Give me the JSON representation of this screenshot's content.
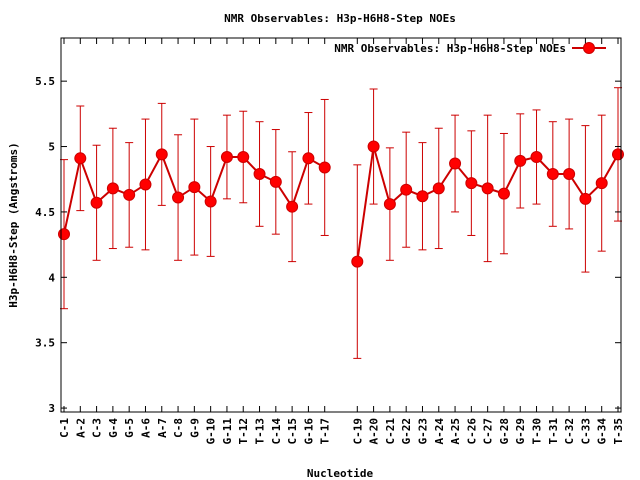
{
  "chart_data": {
    "type": "line",
    "title": "NMR Observables: H3p-H6H8-Step NOEs",
    "xlabel": "Nucleotide",
    "ylabel": "H3p-H6H8-Step (Angstroms)",
    "ylim": [
      2.97,
      5.83
    ],
    "yticks": [
      3,
      3.5,
      4,
      4.5,
      5,
      5.5
    ],
    "ytick_labels": [
      "3",
      "3.5",
      "4",
      "4.5",
      "5",
      "5.5"
    ],
    "grid": false,
    "legend_position": "top-right",
    "colors": {
      "series": "#ff0000",
      "errorbar": "#cc0000",
      "axis": "#000000"
    },
    "x": [
      "C-1",
      "A-2",
      "C-3",
      "G-4",
      "G-5",
      "A-6",
      "A-7",
      "C-8",
      "G-9",
      "G-10",
      "G-11",
      "T-12",
      "T-13",
      "C-14",
      "C-15",
      "G-16",
      "T-17",
      "",
      "C-19",
      "A-20",
      "C-21",
      "G-22",
      "G-23",
      "A-24",
      "A-25",
      "C-26",
      "C-27",
      "G-28",
      "G-29",
      "T-30",
      "T-31",
      "C-32",
      "C-33",
      "G-34",
      "T-35"
    ],
    "series": [
      {
        "name": "NMR Observables: H3p-H6H8-Step NOEs",
        "values": [
          4.33,
          4.91,
          4.57,
          4.68,
          4.63,
          4.71,
          4.94,
          4.61,
          4.69,
          4.58,
          4.92,
          4.92,
          4.79,
          4.73,
          4.54,
          4.91,
          4.84,
          null,
          4.12,
          5.0,
          4.56,
          4.67,
          4.62,
          4.68,
          4.87,
          4.72,
          4.68,
          4.64,
          4.89,
          4.92,
          4.79,
          4.79,
          4.6,
          4.72,
          4.94
        ],
        "errors": [
          0.57,
          0.4,
          0.44,
          0.46,
          0.4,
          0.5,
          0.39,
          0.48,
          0.52,
          0.42,
          0.32,
          0.35,
          0.4,
          0.4,
          0.42,
          0.35,
          0.52,
          null,
          0.74,
          0.44,
          0.43,
          0.44,
          0.41,
          0.46,
          0.37,
          0.4,
          0.56,
          0.46,
          0.36,
          0.36,
          0.4,
          0.42,
          0.56,
          0.52,
          0.51
        ]
      }
    ]
  }
}
